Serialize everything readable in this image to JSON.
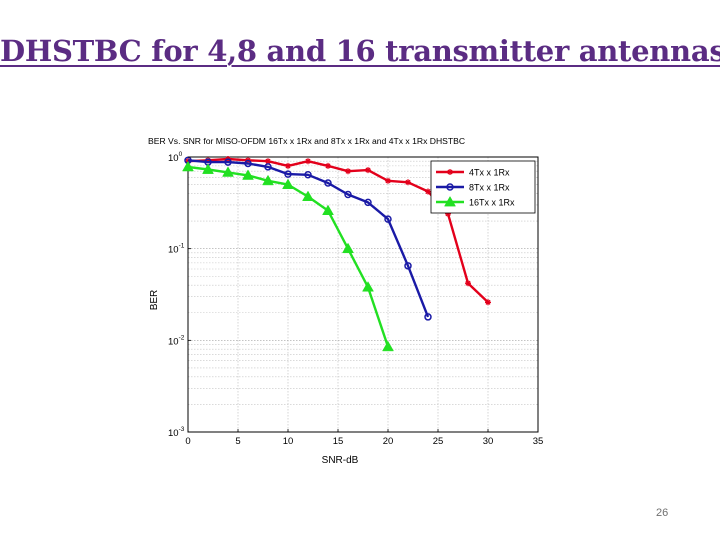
{
  "slide": {
    "title": "DHSTBC for 4,8 and 16 transmitter antennas",
    "page_number": "26"
  },
  "chart_data": {
    "type": "line",
    "title": "BER Vs. SNR for MISO-OFDM 16Tx x 1Rx and 8Tx x 1Rx and 4Tx x 1Rx DHSTBC",
    "xlabel": "SNR-dB",
    "ylabel": "BER",
    "xlim": [
      0,
      35
    ],
    "ylim": [
      0.001,
      1
    ],
    "yscale": "log",
    "xticks": [
      0,
      5,
      10,
      15,
      20,
      25,
      30,
      35
    ],
    "yticks": [
      {
        "value": 1,
        "base": "10",
        "exp": "0"
      },
      {
        "value": 0.1,
        "base": "10",
        "exp": "-1"
      },
      {
        "value": 0.01,
        "base": "10",
        "exp": "-2"
      },
      {
        "value": 0.001,
        "base": "10",
        "exp": "-3"
      }
    ],
    "grid": true,
    "legend_position": "top-right",
    "series": [
      {
        "name": "4Tx x 1Rx",
        "color": "#e3001b",
        "marker": "star",
        "x": [
          0,
          2,
          4,
          6,
          8,
          10,
          12,
          14,
          16,
          18,
          20,
          22,
          24,
          26,
          28,
          30
        ],
        "y": [
          0.9,
          0.92,
          0.95,
          0.92,
          0.9,
          0.8,
          0.9,
          0.8,
          0.7,
          0.72,
          0.55,
          0.53,
          0.42,
          0.24,
          0.042,
          0.026
        ]
      },
      {
        "name": "8Tx x 1Rx",
        "color": "#1a1aa6",
        "marker": "circle",
        "x": [
          0,
          2,
          4,
          6,
          8,
          10,
          12,
          14,
          16,
          18,
          20,
          22,
          24
        ],
        "y": [
          0.92,
          0.88,
          0.88,
          0.85,
          0.78,
          0.65,
          0.64,
          0.52,
          0.39,
          0.32,
          0.21,
          0.065,
          0.018
        ]
      },
      {
        "name": "16Tx x 1Rx",
        "color": "#22e022",
        "marker": "triangle",
        "x": [
          0,
          2,
          4,
          6,
          8,
          10,
          12,
          14,
          16,
          18,
          20
        ],
        "y": [
          0.78,
          0.73,
          0.68,
          0.63,
          0.55,
          0.5,
          0.37,
          0.26,
          0.1,
          0.038,
          0.0085
        ]
      }
    ]
  }
}
